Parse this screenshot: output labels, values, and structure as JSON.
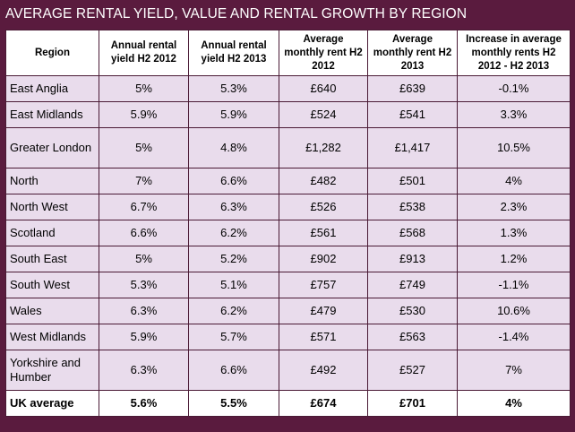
{
  "title": "AVERAGE RENTAL YIELD, VALUE AND RENTAL GROWTH BY REGION",
  "colors": {
    "frame": "#5a1b3e",
    "row_background": "#e9dcec",
    "header_background": "#ffffff"
  },
  "table": {
    "headers": [
      "Region",
      "Annual rental yield H2 2012",
      "Annual rental yield H2 2013",
      "Average monthly rent H2 2012",
      "Average monthly rent H2 2013",
      "Increase in average monthly rents H2 2012 - H2 2013"
    ],
    "rows": [
      [
        "East Anglia",
        "5%",
        "5.3%",
        "£640",
        "£639",
        "-0.1%"
      ],
      [
        "East Midlands",
        "5.9%",
        "5.9%",
        "£524",
        "£541",
        "3.3%"
      ],
      [
        "Greater London",
        "5%",
        "4.8%",
        "£1,282",
        "£1,417",
        "10.5%"
      ],
      [
        "North",
        "7%",
        "6.6%",
        "£482",
        "£501",
        "4%"
      ],
      [
        "North West",
        "6.7%",
        "6.3%",
        "£526",
        "£538",
        "2.3%"
      ],
      [
        "Scotland",
        "6.6%",
        "6.2%",
        "£561",
        "£568",
        "1.3%"
      ],
      [
        "South East",
        "5%",
        "5.2%",
        "£902",
        "£913",
        "1.2%"
      ],
      [
        "South West",
        "5.3%",
        "5.1%",
        "£757",
        "£749",
        "-1.1%"
      ],
      [
        "Wales",
        "6.3%",
        "6.2%",
        "£479",
        "£530",
        "10.6%"
      ],
      [
        "West Midlands",
        "5.9%",
        "5.7%",
        "£571",
        "£563",
        "-1.4%"
      ],
      [
        "Yorkshire and Humber",
        "6.3%",
        "6.6%",
        "£492",
        "£527",
        "7%"
      ]
    ],
    "total": [
      "UK average",
      "5.6%",
      "5.5%",
      "£674",
      "£701",
      "4%"
    ]
  }
}
